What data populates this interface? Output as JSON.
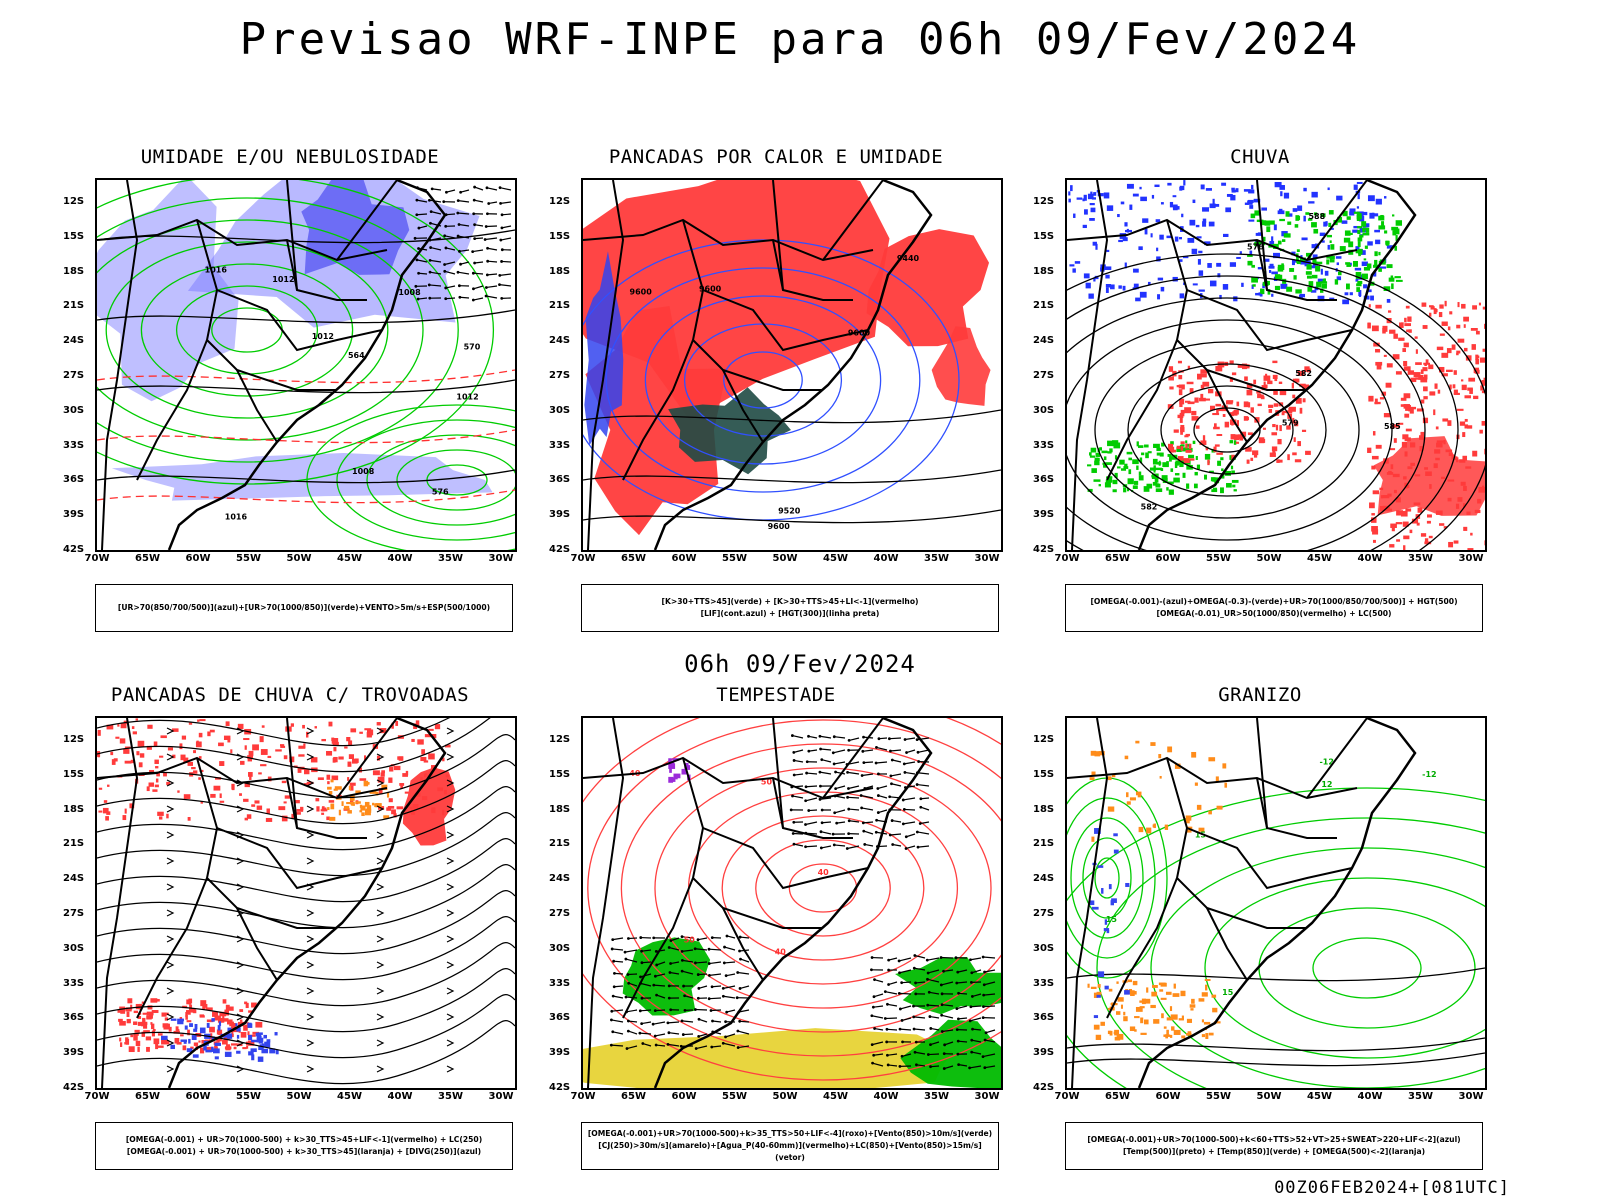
{
  "title": "Previsao WRF-INPE  para 06h 09/Fev/2024",
  "mid_title": "06h 09/Fev/2024",
  "footer": "00Z06FEB2024+[081UTC]",
  "lat_labels": [
    "12S",
    "15S",
    "18S",
    "21S",
    "24S",
    "27S",
    "30S",
    "33S",
    "36S",
    "39S",
    "42S"
  ],
  "lon_labels": [
    "70W",
    "65W",
    "60W",
    "55W",
    "50W",
    "45W",
    "40W",
    "35W",
    "30W"
  ],
  "panels": [
    {
      "title": "UMIDADE E/OU NEBULOSIDADE",
      "theme": "umidade",
      "legend": [
        "[UR>70(850/700/500)](azul)+[UR>70(1000/850)](verde)+VENTO>5m/s+ESP(500/1000)"
      ],
      "labels": [
        "1012",
        "1008",
        "1008",
        "1012",
        "1016",
        "1016",
        "1012",
        "576",
        "570",
        "564"
      ]
    },
    {
      "title": "PANCADAS POR CALOR E UMIDADE",
      "theme": "pancadas",
      "legend": [
        "[K>30+TTS>45](verde) + [K>30+TTS>45+LI<-1](vermelho)",
        "[LIF](cont.azul) + [HGT(300)](linha preta)"
      ],
      "labels": [
        "9600",
        "9600",
        "9600",
        "9520",
        "9440",
        "9600"
      ]
    },
    {
      "title": "CHUVA",
      "theme": "chuva",
      "legend": [
        "[OMEGA(-0.001)-(azul)+OMEGA(-0.3)-(verde)+UR>70(1000/850/700/500)] + HGT(500)",
        "[OMEGA(-0.01)_UR>50(1000/850)(vermelho) + LC(500)"
      ],
      "labels": [
        "582",
        "585",
        "582",
        "579",
        "576",
        "588"
      ]
    },
    {
      "title": "PANCADAS DE CHUVA C/ TROVOADAS",
      "theme": "trovoadas",
      "legend": [
        "[OMEGA(-0.001) + UR>70(1000-500) + k>30_TTS>45+LIF<-1](vermelho) + LC(250)",
        "[OMEGA(-0.001) + UR>70(1000-500) + k>30_TTS>45](laranja) + [DIVG(250)](azul)"
      ],
      "labels": []
    },
    {
      "title": "TEMPESTADE",
      "theme": "tempestade",
      "legend": [
        "[OMEGA(-0.001)+UR>70(1000-500)+k>35_TTS>50+LIF<-4](roxo)+[Vento(850)>10m/s](verde)",
        "[CJ(250)>30m/s](amarelo)+[Agua_P(40-60mm)](vermelho)+LC(850)+[Vento(850)>15m/s](vetor)"
      ],
      "labels": [
        "50",
        "50",
        "40",
        "40",
        "40"
      ]
    },
    {
      "title": "GRANIZO",
      "theme": "granizo",
      "legend": [
        "[OMEGA(-0.001)+UR>70(1000-500)+k<60+TTS>52+VT>25+SWEAT>220+LIF<-2](azul)",
        "[Temp(500)](preto) + [Temp(850)](verde) + [OMEGA(500)<-2](laranja)"
      ],
      "labels": [
        "15",
        "15",
        "15",
        "12",
        "-12",
        "-12"
      ]
    }
  ]
}
